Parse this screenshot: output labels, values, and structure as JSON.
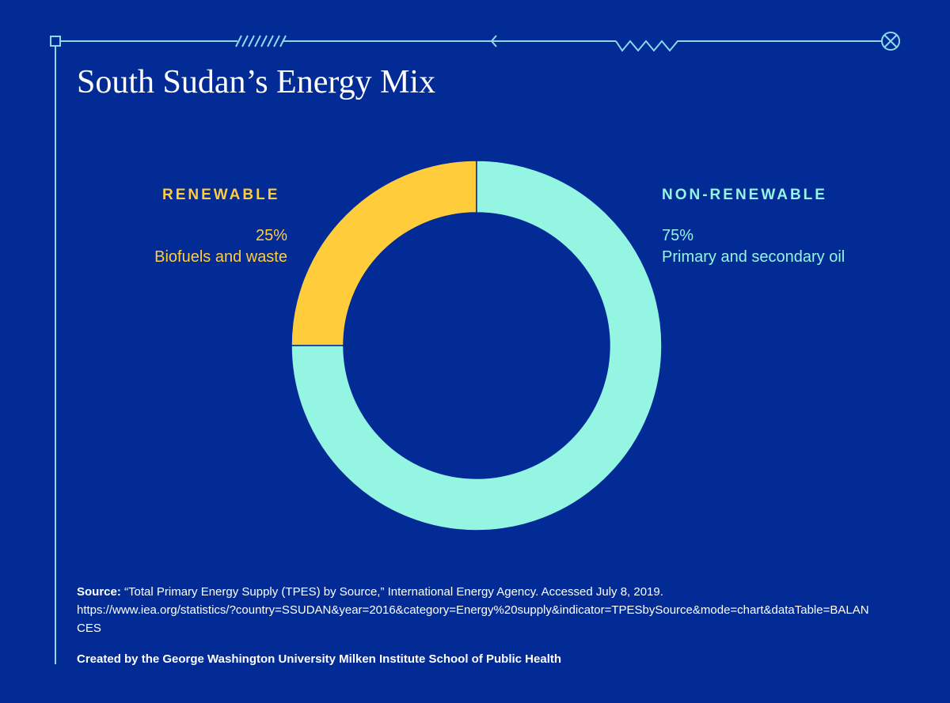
{
  "title": "South Sudan’s Energy Mix",
  "colors": {
    "background": "#022b96",
    "renewable": "#ffcd3c",
    "non_renewable": "#95f5e3",
    "decoration": "#8fd9ee"
  },
  "chart_data": {
    "type": "pie",
    "variant": "donut",
    "title": "South Sudan’s Energy Mix",
    "slices": [
      {
        "category": "RENEWABLE",
        "percent_label": "25%",
        "label": "Biofuels and waste",
        "value": 25,
        "color": "#ffcd3c"
      },
      {
        "category": "NON-RENEWABLE",
        "percent_label": "75%",
        "label": "Primary and secondary oil",
        "value": 75,
        "color": "#95f5e3"
      }
    ]
  },
  "footer": {
    "source_label": "Source:",
    "source_text": " “Total Primary Energy Supply (TPES) by Source,” International Energy Agency. Accessed July 8, 2019.",
    "source_url": "https://www.iea.org/statistics/?country=SSUDAN&year=2016&category=Energy%20supply&indicator=TPESbySource&mode=chart&dataTable=BALANCES",
    "credit": "Created by the George Washington University Milken Institute School of Public Health"
  }
}
